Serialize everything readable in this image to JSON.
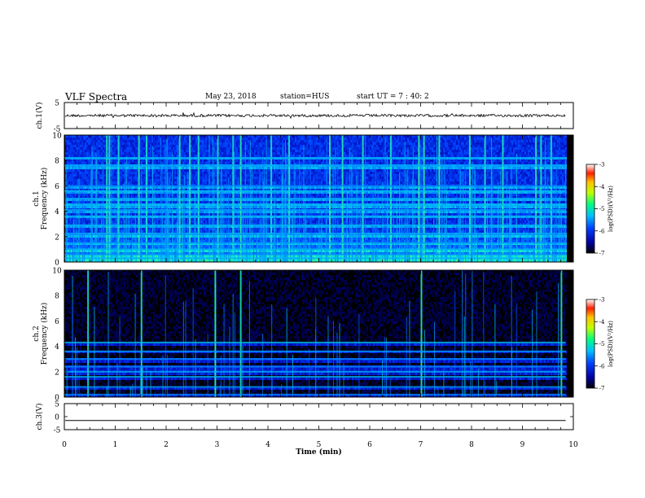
{
  "header": {
    "title": "VLF Spectra",
    "date": "May 23, 2018",
    "station": "station=HUS",
    "start_ut": "start  UT =   7 : 40: 2"
  },
  "chart_data": [
    {
      "type": "line",
      "name": "ch1-waveform",
      "ylabel": "ch.1(V)",
      "ylim": [
        -5,
        5
      ],
      "y_ticks": [
        5,
        -5
      ],
      "baseline_value": 0,
      "description_values": {
        "noise_amplitude": 0.5
      }
    },
    {
      "type": "heatmap",
      "name": "ch1-spectrogram",
      "ylabel": "ch.1",
      "ylabel2": "Frequency (kHz)",
      "ylim": [
        0,
        10
      ],
      "y_ticks": [
        0,
        2,
        4,
        6,
        8,
        10
      ],
      "data_end_min": 9.85,
      "colorbar": {
        "label": "log(PSD)(V²/Hz)",
        "range": [
          -7,
          -3
        ],
        "ticks": [
          -3,
          -4,
          -5,
          -6,
          -7
        ]
      },
      "bright_bands_khz": [
        0.3,
        0.6,
        1.0,
        1.5,
        2.2,
        2.9,
        3.6,
        4.1,
        4.5,
        5.0,
        5.6,
        6.0,
        7.6,
        8.2
      ],
      "strong_bursts_min": [
        0.82,
        0.87,
        1.05,
        1.45,
        1.6,
        2.25,
        2.45,
        2.62,
        3.0,
        3.3,
        3.45,
        4.05,
        4.4,
        5.2,
        5.45,
        5.85,
        6.4,
        6.95,
        7.05,
        7.35,
        7.95,
        8.25,
        8.6,
        9.25,
        9.35,
        9.55
      ]
    },
    {
      "type": "heatmap",
      "name": "ch2-spectrogram",
      "ylabel": "ch.2",
      "ylabel2": "Frequency (kHz)",
      "ylim": [
        0,
        10
      ],
      "y_ticks": [
        0,
        2,
        4,
        6,
        8,
        10
      ],
      "data_end_min": 9.85,
      "colorbar": {
        "label": "log(PSD)(V²/Hz)",
        "range": [
          -7,
          -3
        ],
        "ticks": [
          -3,
          -4,
          -5,
          -6,
          -7
        ]
      },
      "bright_bands_khz": [
        0.2,
        0.8,
        1.6,
        2.0,
        2.4,
        3.0,
        3.6,
        4.3
      ],
      "strong_bursts_min": [
        0.45,
        1.5,
        2.95,
        3.45,
        7.0,
        9.75
      ]
    },
    {
      "type": "line",
      "name": "ch3-waveform",
      "ylabel": "ch.3(V)",
      "ylim": [
        -5,
        5
      ],
      "y_ticks": [
        5,
        0,
        -5
      ],
      "baseline_value": -1.5
    }
  ],
  "xaxis": {
    "label": "Time (min)",
    "ticks": [
      "0",
      "1",
      "2",
      "3",
      "4",
      "5",
      "6",
      "7",
      "8",
      "9",
      "10"
    ],
    "range": [
      0,
      10
    ]
  }
}
